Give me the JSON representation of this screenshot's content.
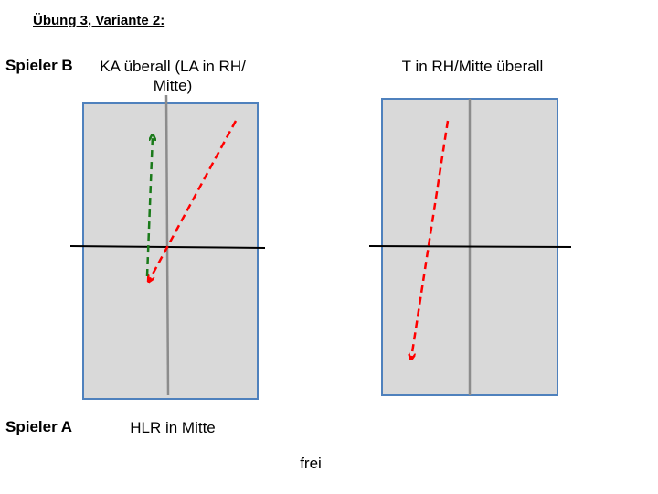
{
  "title": "Übung 3, Variante 2:",
  "players": {
    "b_label": "Spieler B",
    "a_label": "Spieler A"
  },
  "left_court": {
    "top_caption": "KA überall (LA in RH/ Mitte)",
    "bottom_caption": "HLR in Mitte"
  },
  "right_court": {
    "top_caption": "T in RH/Mitte überall"
  },
  "footer": "frei",
  "colors": {
    "court_fill": "#d9d9d9",
    "court_border": "#4f81bd",
    "center_line": "#8c8c8c",
    "net_line": "#000000",
    "arrow_red": "#ff0000",
    "arrow_green": "#1a7a1a"
  }
}
